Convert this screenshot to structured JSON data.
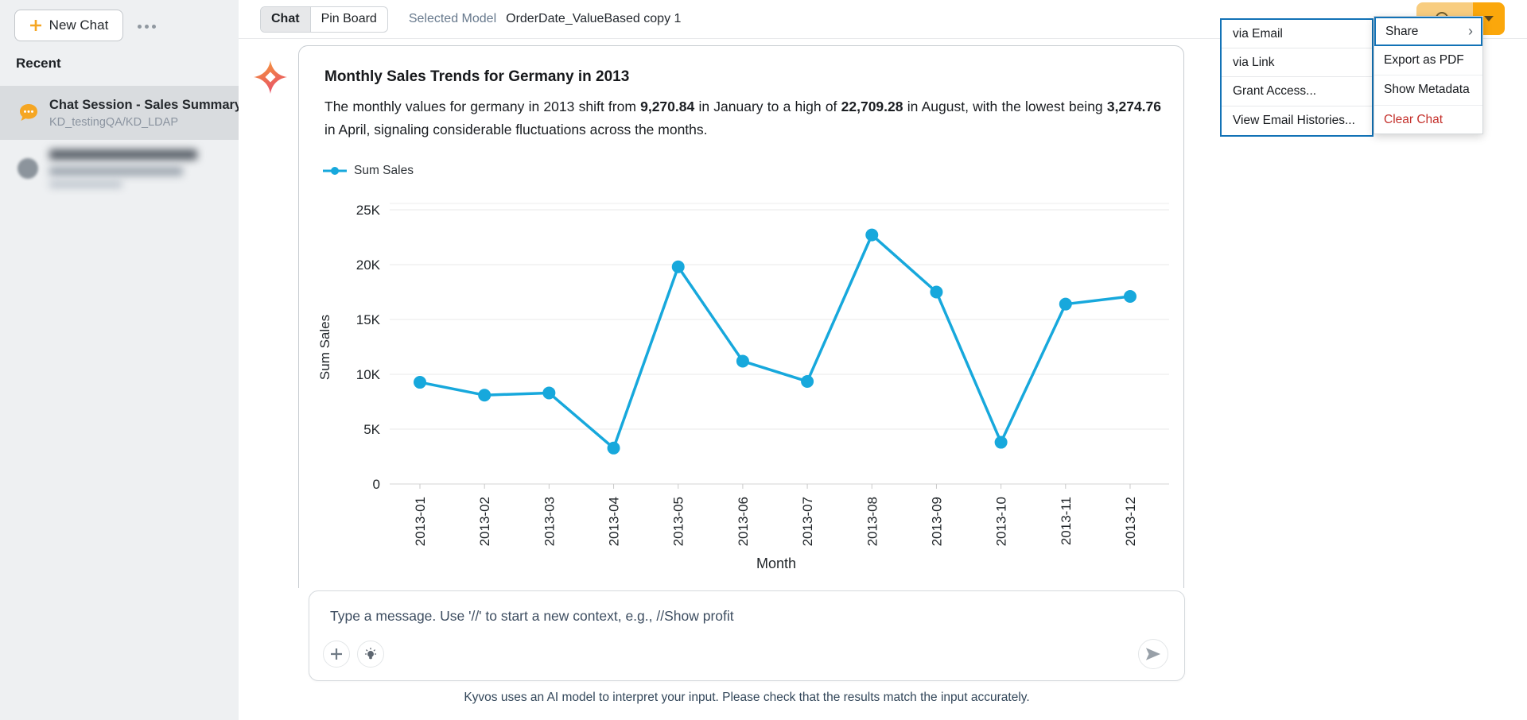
{
  "sidebar": {
    "new_chat_label": "New Chat",
    "recent_heading": "Recent",
    "items": [
      {
        "title": "Chat Session - Sales Summary",
        "subtitle": "KD_testingQA/KD_LDAP",
        "selected": true
      },
      {
        "redacted": true
      }
    ]
  },
  "header": {
    "tabs": [
      {
        "label": "Chat",
        "active": true
      },
      {
        "label": "Pin Board",
        "active": false
      }
    ],
    "selected_model_label": "Selected Model",
    "model_name": "OrderDate_ValueBased copy 1"
  },
  "card": {
    "title": "Monthly Sales Trends for Germany in 2013",
    "description_parts": [
      {
        "text": "The monthly values for germany in 2013 shift from ",
        "bold": false
      },
      {
        "text": "9,270.84",
        "bold": true
      },
      {
        "text": " in January to a high of ",
        "bold": false
      },
      {
        "text": "22,709.28",
        "bold": true
      },
      {
        "text": " in August, with the lowest being ",
        "bold": false
      },
      {
        "text": "3,274.76",
        "bold": true
      },
      {
        "text": " in April, signaling considerable fluctuations across the months.",
        "bold": false
      }
    ]
  },
  "chart_data": {
    "type": "line",
    "title": "Monthly Sales Trends for Germany in 2013",
    "categories": [
      "2013-01",
      "2013-02",
      "2013-03",
      "2013-04",
      "2013-05",
      "2013-06",
      "2013-07",
      "2013-08",
      "2013-09",
      "2013-10",
      "2013-11",
      "2013-12"
    ],
    "series": [
      {
        "name": "Sum Sales",
        "values": [
          9270.84,
          8100,
          8300,
          3274.76,
          19800,
          11200,
          9350,
          22709.28,
          17500,
          3800,
          16400,
          17100
        ]
      }
    ],
    "xlabel": "Month",
    "ylabel": "Sum Sales",
    "ylim": [
      0,
      25000
    ],
    "ytick_labels": [
      "0",
      "5K",
      "10K",
      "15K",
      "20K",
      "25K"
    ],
    "grid": true,
    "legend_position": "top-left",
    "line_color": "#17A8DC"
  },
  "composer": {
    "placeholder": "Type a message. Use '//' to start a new context, e.g., //Show profit",
    "disclaimer": "Kyvos uses an AI model to interpret your input. Please check that the results match the input accurately."
  },
  "menus": {
    "main": {
      "items": [
        {
          "label": "Share",
          "submenu": true,
          "focused": true
        },
        {
          "label": "Export as PDF"
        },
        {
          "label": "Show Metadata"
        },
        {
          "label": "Clear Chat",
          "danger": true
        }
      ]
    },
    "share_submenu": {
      "items": [
        {
          "label": "via Email"
        },
        {
          "label": "via Link"
        },
        {
          "label": "Grant Access..."
        },
        {
          "label": "View Email Histories..."
        }
      ]
    }
  },
  "colors": {
    "accent_blue": "#1272b6",
    "line": "#17A8DC",
    "brand_orange": "#f5a623",
    "split_button_light": "#f8cd80",
    "split_button_dark": "#fba70b",
    "danger_red": "#c4302b"
  }
}
